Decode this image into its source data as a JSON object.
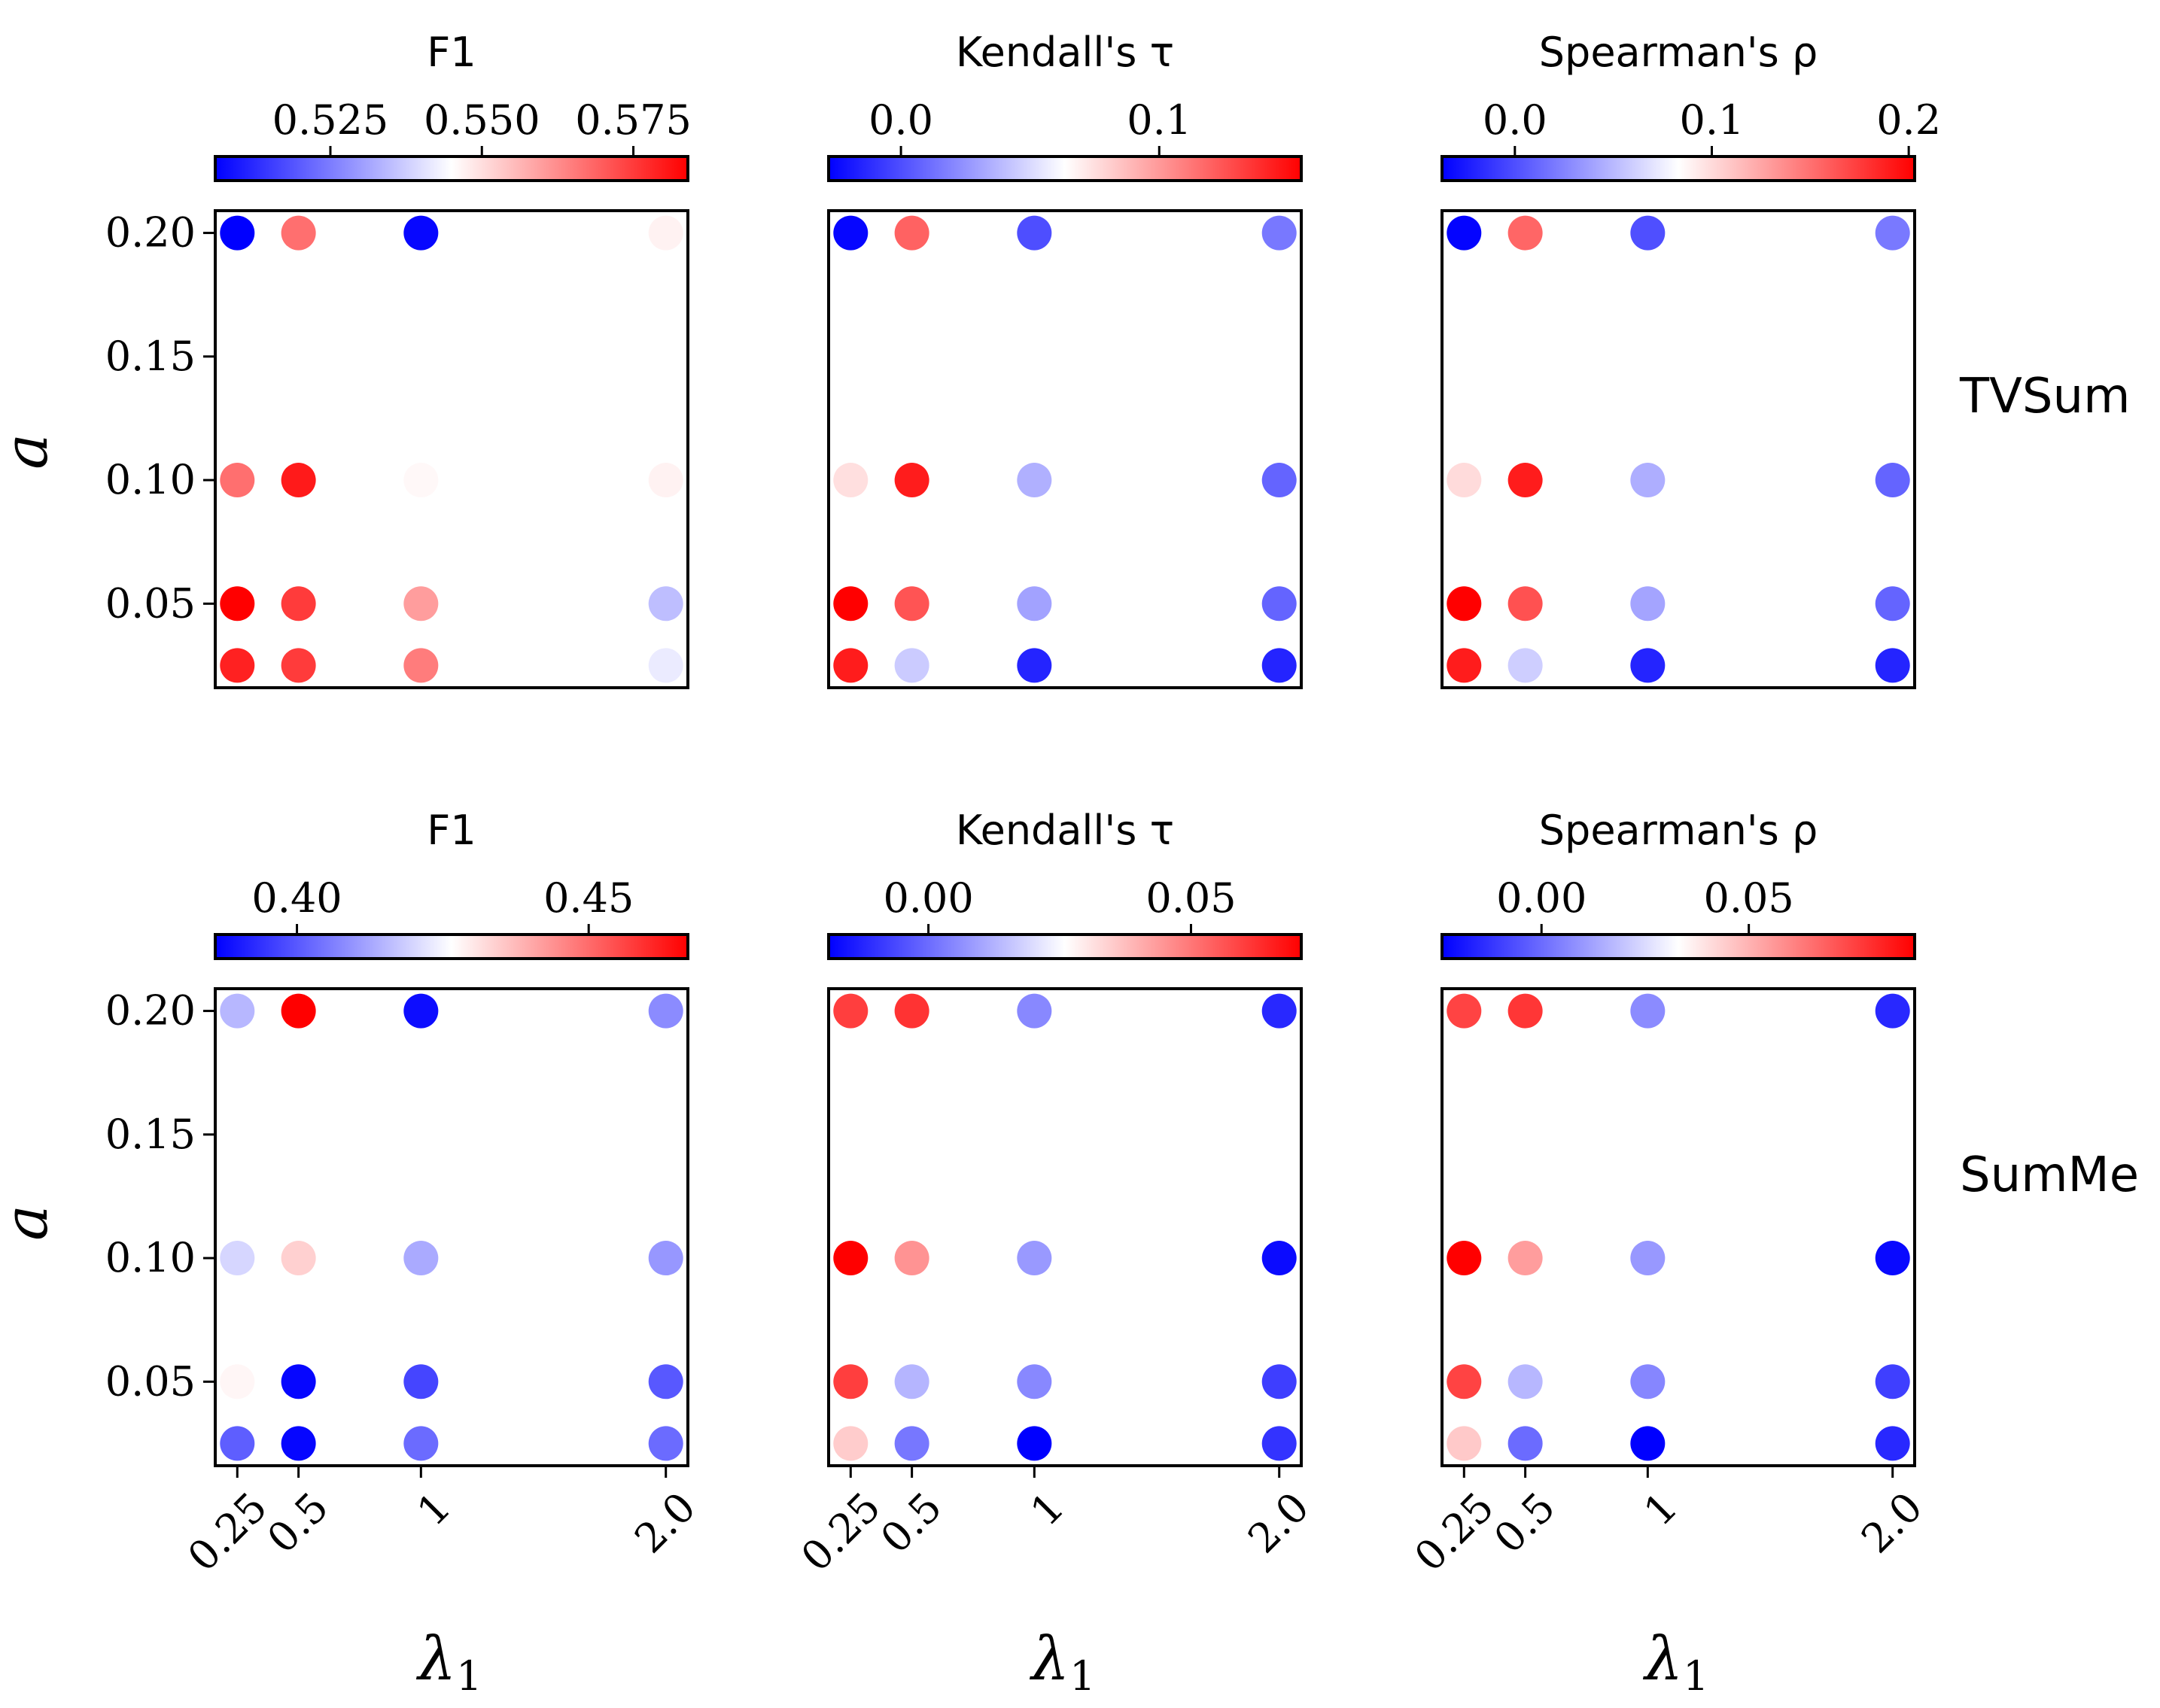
{
  "figure": {
    "x_label": "λ",
    "x_label_sub": "1",
    "y_label": "a",
    "row_labels": [
      "TVSum",
      "SumMe"
    ]
  },
  "colors": {
    "low": "#0000ff",
    "mid": "#ffffff",
    "high": "#ff0000",
    "frame": "#000000"
  },
  "chart_data": [
    {
      "type": "scatter",
      "id": "tvsum-f1",
      "dataset": "TVSum",
      "title": "F1",
      "colorbar_ticks": [
        "0.525",
        "0.550",
        "0.575"
      ],
      "colorbar_tick_values": [
        0.525,
        0.55,
        0.575
      ],
      "color_range": [
        0.506,
        0.584
      ],
      "x_categories": [
        "0.25",
        "0.5",
        "1",
        "2.0"
      ],
      "x_positions": [
        0.25,
        0.5,
        1,
        2
      ],
      "y_ticks": [
        "0.20",
        "0.15",
        "0.10",
        "0.05"
      ],
      "y_tick_values": [
        0.2,
        0.15,
        0.1,
        0.05
      ],
      "xlim": [
        0.16,
        2.09
      ],
      "ylim": [
        0.016,
        0.209
      ],
      "points": [
        {
          "x": 0.25,
          "y": 0.2,
          "v": 0.506
        },
        {
          "x": 0.5,
          "y": 0.2,
          "v": 0.567
        },
        {
          "x": 1,
          "y": 0.2,
          "v": 0.507
        },
        {
          "x": 2,
          "y": 0.2,
          "v": 0.547
        },
        {
          "x": 0.25,
          "y": 0.1,
          "v": 0.567
        },
        {
          "x": 0.5,
          "y": 0.1,
          "v": 0.58
        },
        {
          "x": 1,
          "y": 0.1,
          "v": 0.546
        },
        {
          "x": 2,
          "y": 0.1,
          "v": 0.547
        },
        {
          "x": 0.25,
          "y": 0.05,
          "v": 0.584
        },
        {
          "x": 0.5,
          "y": 0.05,
          "v": 0.575
        },
        {
          "x": 1,
          "y": 0.05,
          "v": 0.56
        },
        {
          "x": 2,
          "y": 0.05,
          "v": 0.535
        },
        {
          "x": 0.25,
          "y": 0.025,
          "v": 0.579
        },
        {
          "x": 0.5,
          "y": 0.025,
          "v": 0.575
        },
        {
          "x": 1,
          "y": 0.025,
          "v": 0.565
        },
        {
          "x": 2,
          "y": 0.025,
          "v": 0.542
        }
      ]
    },
    {
      "type": "scatter",
      "id": "tvsum-kendall",
      "dataset": "TVSum",
      "title": "Kendall's τ",
      "colorbar_ticks": [
        "0.0",
        "0.1"
      ],
      "colorbar_tick_values": [
        0.0,
        0.1
      ],
      "color_range": [
        -0.028,
        0.155
      ],
      "x_categories": [
        "0.25",
        "0.5",
        "1",
        "2.0"
      ],
      "x_positions": [
        0.25,
        0.5,
        1,
        2
      ],
      "y_ticks": [
        "0.20",
        "0.15",
        "0.10",
        "0.05"
      ],
      "y_tick_values": [
        0.2,
        0.15,
        0.1,
        0.05
      ],
      "xlim": [
        0.16,
        2.09
      ],
      "ylim": [
        0.016,
        0.209
      ],
      "points": [
        {
          "x": 0.25,
          "y": 0.2,
          "v": -0.026
        },
        {
          "x": 0.5,
          "y": 0.2,
          "v": 0.12
        },
        {
          "x": 1,
          "y": 0.2,
          "v": 0.0
        },
        {
          "x": 2,
          "y": 0.2,
          "v": 0.015
        },
        {
          "x": 0.25,
          "y": 0.1,
          "v": 0.075
        },
        {
          "x": 0.5,
          "y": 0.1,
          "v": 0.145
        },
        {
          "x": 1,
          "y": 0.1,
          "v": 0.035
        },
        {
          "x": 2,
          "y": 0.1,
          "v": 0.008
        },
        {
          "x": 0.25,
          "y": 0.05,
          "v": 0.155
        },
        {
          "x": 0.5,
          "y": 0.05,
          "v": 0.125
        },
        {
          "x": 1,
          "y": 0.05,
          "v": 0.03
        },
        {
          "x": 2,
          "y": 0.05,
          "v": 0.008
        },
        {
          "x": 0.25,
          "y": 0.025,
          "v": 0.145
        },
        {
          "x": 0.5,
          "y": 0.025,
          "v": 0.045
        },
        {
          "x": 1,
          "y": 0.025,
          "v": -0.015
        },
        {
          "x": 2,
          "y": 0.025,
          "v": -0.015
        }
      ]
    },
    {
      "type": "scatter",
      "id": "tvsum-spearman",
      "dataset": "TVSum",
      "title": "Spearman's ρ",
      "colorbar_ticks": [
        "0.0",
        "0.1",
        "0.2"
      ],
      "colorbar_tick_values": [
        0.0,
        0.1,
        0.2
      ],
      "color_range": [
        -0.037,
        0.203
      ],
      "x_categories": [
        "0.25",
        "0.5",
        "1",
        "2.0"
      ],
      "x_positions": [
        0.25,
        0.5,
        1,
        2
      ],
      "y_ticks": [
        "0.20",
        "0.15",
        "0.10",
        "0.05"
      ],
      "y_tick_values": [
        0.2,
        0.15,
        0.1,
        0.05
      ],
      "xlim": [
        0.16,
        2.09
      ],
      "ylim": [
        0.016,
        0.209
      ],
      "points": [
        {
          "x": 0.25,
          "y": 0.2,
          "v": -0.035
        },
        {
          "x": 0.5,
          "y": 0.2,
          "v": 0.155
        },
        {
          "x": 1,
          "y": 0.2,
          "v": 0.0
        },
        {
          "x": 2,
          "y": 0.2,
          "v": 0.02
        },
        {
          "x": 0.25,
          "y": 0.1,
          "v": 0.1
        },
        {
          "x": 0.5,
          "y": 0.1,
          "v": 0.19
        },
        {
          "x": 1,
          "y": 0.1,
          "v": 0.045
        },
        {
          "x": 2,
          "y": 0.1,
          "v": 0.01
        },
        {
          "x": 0.25,
          "y": 0.05,
          "v": 0.203
        },
        {
          "x": 0.5,
          "y": 0.05,
          "v": 0.165
        },
        {
          "x": 1,
          "y": 0.05,
          "v": 0.04
        },
        {
          "x": 2,
          "y": 0.05,
          "v": 0.01
        },
        {
          "x": 0.25,
          "y": 0.025,
          "v": 0.19
        },
        {
          "x": 0.5,
          "y": 0.025,
          "v": 0.06
        },
        {
          "x": 1,
          "y": 0.025,
          "v": -0.02
        },
        {
          "x": 2,
          "y": 0.025,
          "v": -0.02
        }
      ]
    },
    {
      "type": "scatter",
      "id": "summe-f1",
      "dataset": "SumMe",
      "title": "F1",
      "colorbar_ticks": [
        "0.40",
        "0.45"
      ],
      "colorbar_tick_values": [
        0.4,
        0.45
      ],
      "color_range": [
        0.386,
        0.467
      ],
      "x_categories": [
        "0.25",
        "0.5",
        "1",
        "2.0"
      ],
      "x_positions": [
        0.25,
        0.5,
        1,
        2
      ],
      "y_ticks": [
        "0.20",
        "0.15",
        "0.10",
        "0.05"
      ],
      "y_tick_values": [
        0.2,
        0.15,
        0.1,
        0.05
      ],
      "xlim": [
        0.16,
        2.09
      ],
      "ylim": [
        0.016,
        0.209
      ],
      "points": [
        {
          "x": 0.25,
          "y": 0.2,
          "v": 0.415
        },
        {
          "x": 0.5,
          "y": 0.2,
          "v": 0.467
        },
        {
          "x": 1,
          "y": 0.2,
          "v": 0.388
        },
        {
          "x": 2,
          "y": 0.2,
          "v": 0.408
        },
        {
          "x": 0.25,
          "y": 0.1,
          "v": 0.42
        },
        {
          "x": 0.5,
          "y": 0.1,
          "v": 0.434
        },
        {
          "x": 1,
          "y": 0.1,
          "v": 0.413
        },
        {
          "x": 2,
          "y": 0.1,
          "v": 0.41
        },
        {
          "x": 0.25,
          "y": 0.05,
          "v": 0.428
        },
        {
          "x": 0.5,
          "y": 0.05,
          "v": 0.387
        },
        {
          "x": 1,
          "y": 0.05,
          "v": 0.397
        },
        {
          "x": 2,
          "y": 0.05,
          "v": 0.4
        },
        {
          "x": 0.25,
          "y": 0.025,
          "v": 0.401
        },
        {
          "x": 0.5,
          "y": 0.025,
          "v": 0.387
        },
        {
          "x": 1,
          "y": 0.025,
          "v": 0.403
        },
        {
          "x": 2,
          "y": 0.025,
          "v": 0.403
        }
      ]
    },
    {
      "type": "scatter",
      "id": "summe-kendall",
      "dataset": "SumMe",
      "title": "Kendall's τ",
      "colorbar_ticks": [
        "0.00",
        "0.05"
      ],
      "colorbar_tick_values": [
        0.0,
        0.05
      ],
      "color_range": [
        -0.019,
        0.071
      ],
      "x_categories": [
        "0.25",
        "0.5",
        "1",
        "2.0"
      ],
      "x_positions": [
        0.25,
        0.5,
        1,
        2
      ],
      "y_ticks": [
        "0.20",
        "0.15",
        "0.10",
        "0.05"
      ],
      "y_tick_values": [
        0.2,
        0.15,
        0.1,
        0.05
      ],
      "xlim": [
        0.16,
        2.09
      ],
      "ylim": [
        0.016,
        0.209
      ],
      "points": [
        {
          "x": 0.25,
          "y": 0.2,
          "v": 0.06
        },
        {
          "x": 0.5,
          "y": 0.2,
          "v": 0.062
        },
        {
          "x": 1,
          "y": 0.2,
          "v": 0.005
        },
        {
          "x": 2,
          "y": 0.2,
          "v": -0.012
        },
        {
          "x": 0.25,
          "y": 0.1,
          "v": 0.071
        },
        {
          "x": 0.5,
          "y": 0.1,
          "v": 0.045
        },
        {
          "x": 1,
          "y": 0.1,
          "v": 0.008
        },
        {
          "x": 2,
          "y": 0.1,
          "v": -0.017
        },
        {
          "x": 0.25,
          "y": 0.05,
          "v": 0.06
        },
        {
          "x": 0.5,
          "y": 0.05,
          "v": 0.013
        },
        {
          "x": 1,
          "y": 0.05,
          "v": 0.005
        },
        {
          "x": 2,
          "y": 0.05,
          "v": -0.008
        },
        {
          "x": 0.25,
          "y": 0.025,
          "v": 0.035
        },
        {
          "x": 0.5,
          "y": 0.025,
          "v": 0.002
        },
        {
          "x": 1,
          "y": 0.025,
          "v": -0.019
        },
        {
          "x": 2,
          "y": 0.025,
          "v": -0.01
        }
      ]
    },
    {
      "type": "scatter",
      "id": "summe-spearman",
      "dataset": "SumMe",
      "title": "Spearman's ρ",
      "colorbar_ticks": [
        "0.00",
        "0.05"
      ],
      "colorbar_tick_values": [
        0.0,
        0.05
      ],
      "color_range": [
        -0.024,
        0.09
      ],
      "x_categories": [
        "0.25",
        "0.5",
        "1",
        "2.0"
      ],
      "x_positions": [
        0.25,
        0.5,
        1,
        2
      ],
      "y_ticks": [
        "0.20",
        "0.15",
        "0.10",
        "0.05"
      ],
      "y_tick_values": [
        0.2,
        0.15,
        0.1,
        0.05
      ],
      "xlim": [
        0.16,
        2.09
      ],
      "ylim": [
        0.016,
        0.209
      ],
      "points": [
        {
          "x": 0.25,
          "y": 0.2,
          "v": 0.075
        },
        {
          "x": 0.5,
          "y": 0.2,
          "v": 0.078
        },
        {
          "x": 1,
          "y": 0.2,
          "v": 0.007
        },
        {
          "x": 2,
          "y": 0.2,
          "v": -0.015
        },
        {
          "x": 0.25,
          "y": 0.1,
          "v": 0.09
        },
        {
          "x": 0.5,
          "y": 0.1,
          "v": 0.055
        },
        {
          "x": 1,
          "y": 0.1,
          "v": 0.01
        },
        {
          "x": 2,
          "y": 0.1,
          "v": -0.022
        },
        {
          "x": 0.25,
          "y": 0.05,
          "v": 0.075
        },
        {
          "x": 0.5,
          "y": 0.05,
          "v": 0.017
        },
        {
          "x": 1,
          "y": 0.05,
          "v": 0.006
        },
        {
          "x": 2,
          "y": 0.05,
          "v": -0.01
        },
        {
          "x": 0.25,
          "y": 0.025,
          "v": 0.045
        },
        {
          "x": 0.5,
          "y": 0.025,
          "v": 0.0
        },
        {
          "x": 1,
          "y": 0.025,
          "v": -0.024
        },
        {
          "x": 2,
          "y": 0.025,
          "v": -0.015
        }
      ]
    }
  ]
}
